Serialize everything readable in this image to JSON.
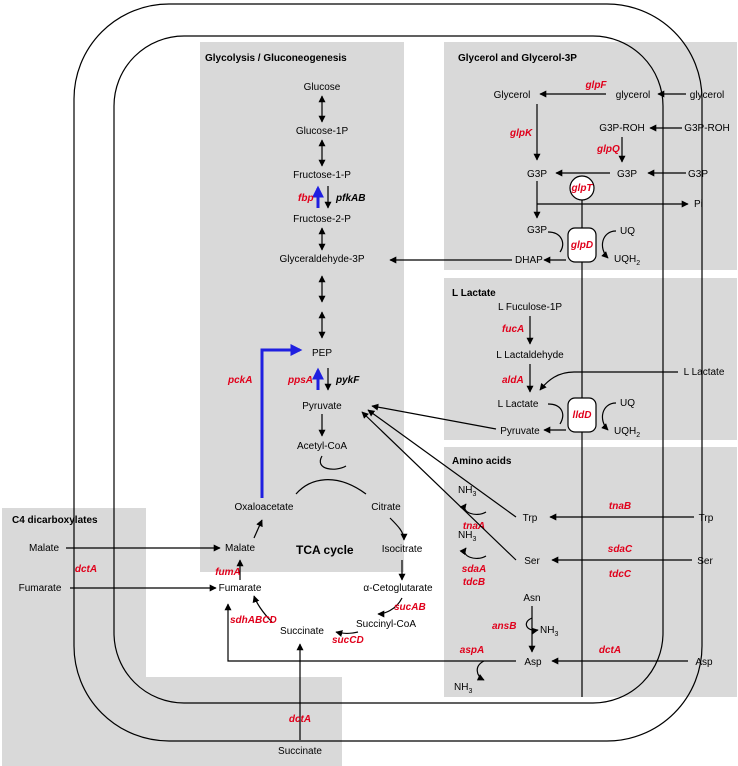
{
  "panels": {
    "glycolysis": "Glycolysis / Gluconeogenesis",
    "glycerol": "Glycerol and Glycerol-3P",
    "lactate": "L Lactate",
    "amino": "Amino acids",
    "c4": "C4 dicarboxylates",
    "tca": "TCA cycle"
  },
  "metabolites": {
    "glucose": "Glucose",
    "glucose1p": "Glucose-1P",
    "fructose1p": "Fructose-1-P",
    "fructose2p": "Fructose-2-P",
    "gap": "Glyceraldehyde-3P",
    "pep": "PEP",
    "pyruvate": "Pyruvate",
    "acetylcoa": "Acetyl-CoA",
    "oxaloacetate": "Oxaloacetate",
    "citrate": "Citrate",
    "isocitrate": "Isocitrate",
    "ketoglutarate": "α-Cetoglutarate",
    "succinylcoa": "Succinyl-CoA",
    "succinate": "Succinate",
    "fumarate": "Fumarate",
    "malate": "Malate",
    "glycerol_in": "Glycerol",
    "glycerol_mid": "glycerol",
    "glycerol_out": "glycerol",
    "g3proh_mid": "G3P-ROH",
    "g3proh_out": "G3P-ROH",
    "g3p_left": "G3P",
    "g3p_mid": "G3P",
    "g3p_out": "G3P",
    "g3p_low": "G3P",
    "pi": "Pi",
    "dhap": "DHAP",
    "uq1": "UQ",
    "uqh1": "UQH",
    "fuculose": "L Fuculose-1P",
    "lactaldehyde": "L Lactaldehyde",
    "llactate_in": "L Lactate",
    "llactate_out": "L Lactate",
    "pyruvate_lldd": "Pyruvate",
    "uq2": "UQ",
    "uqh2": "UQH",
    "nh3_trp": "NH",
    "trp_in": "Trp",
    "trp_out": "Trp",
    "nh3_ser": "NH",
    "ser_in": "Ser",
    "ser_out": "Ser",
    "asn": "Asn",
    "nh3_asn": "NH",
    "asp_in": "Asp",
    "asp_out": "Asp",
    "nh3_asp": "NH",
    "malate_out": "Malate",
    "fumarate_out": "Fumarate",
    "succinate_out": "Succinate",
    "sub2": "2",
    "sub3": "3"
  },
  "genes": {
    "fbp": "fbp",
    "pfkAB": "pfkAB",
    "ppsA": "ppsA",
    "pykF": "pykF",
    "pckA": "pckA",
    "glpF": "glpF",
    "glpK": "glpK",
    "glpQ": "glpQ",
    "glpT": "glpT",
    "glpD": "glpD",
    "fucA": "fucA",
    "aldA": "aldA",
    "lldD": "lldD",
    "tnaB": "tnaB",
    "tnaA": "tnaA",
    "sdaA": "sdaA",
    "tdcB": "tdcB",
    "sdaC": "sdaC",
    "tdcC": "tdcC",
    "ansB": "ansB",
    "aspA": "aspA",
    "dctA_asp": "dctA",
    "dctA_c4": "dctA",
    "dctA_succ": "dctA",
    "fumA": "fumA",
    "sdhABCD": "sdhABCD",
    "sucAB": "sucAB",
    "sucCD": "sucCD"
  },
  "colors": {
    "panel": "#d9d9d9",
    "gene": "#e0001b",
    "highlight": "#1f1fe0"
  }
}
